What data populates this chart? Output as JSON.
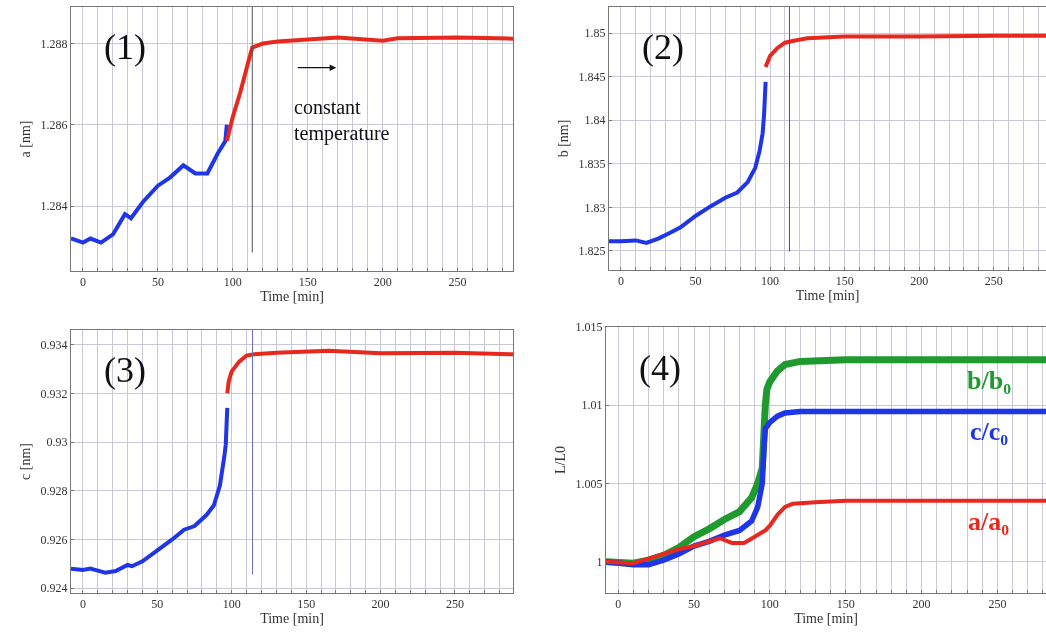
{
  "chart_data": [
    {
      "type": "line",
      "xlabel": "Time [min]",
      "ylabel": "a [nm]",
      "annotations": [
        "(1)",
        "constant temperature"
      ],
      "grid": true,
      "xlim": [
        -8,
        287
      ],
      "ylim": [
        1.2824,
        1.2889
      ],
      "yticks": [
        1.284,
        1.286,
        1.288
      ],
      "xticks": [
        0,
        {
          "value": 10,
          "label": null
        },
        {
          "value": 20,
          "label": null
        },
        {
          "value": 30,
          "label": null
        },
        {
          "value": 40,
          "label": null
        },
        50,
        {
          "value": 60,
          "label": null
        },
        {
          "value": 70,
          "label": null
        },
        {
          "value": 80,
          "label": null
        },
        {
          "value": 90,
          "label": null
        },
        100,
        {
          "value": 110,
          "label": null
        },
        {
          "value": 120,
          "label": null
        },
        {
          "value": 130,
          "label": null
        },
        {
          "value": 140,
          "label": null
        },
        150,
        {
          "value": 160,
          "label": null
        },
        {
          "value": 170,
          "label": null
        },
        {
          "value": 180,
          "label": null
        },
        {
          "value": 190,
          "label": null
        },
        200,
        {
          "value": 210,
          "label": null
        },
        {
          "value": 220,
          "label": null
        },
        {
          "value": 230,
          "label": null
        },
        {
          "value": 240,
          "label": null
        },
        250,
        {
          "value": 260,
          "label": null
        },
        {
          "value": 270,
          "label": null
        },
        {
          "value": 280,
          "label": null
        }
      ],
      "ref_lines": [
        {
          "axis": "x",
          "value": 113,
          "color": "#555555"
        }
      ],
      "series": [
        {
          "color": "#1f35e8",
          "x": [
            -8,
            0,
            5,
            12,
            20,
            28,
            32,
            40,
            50,
            58,
            67,
            75,
            83,
            90,
            95,
            96
          ],
          "values": [
            1.2832,
            1.2831,
            1.2832,
            1.2831,
            1.2833,
            1.2838,
            1.2837,
            1.2841,
            1.2845,
            1.2847,
            1.285,
            1.2848,
            1.2848,
            1.2853,
            1.2856,
            1.286
          ]
        },
        {
          "color": "#e8281e",
          "x": [
            96,
            100,
            105,
            110,
            113,
            120,
            130,
            150,
            170,
            200,
            210,
            250,
            287
          ],
          "values": [
            1.2856,
            1.2862,
            1.2868,
            1.2875,
            1.2879,
            1.288,
            1.28805,
            1.2881,
            1.28815,
            1.28807,
            1.28813,
            1.28815,
            1.28812
          ]
        }
      ]
    },
    {
      "type": "line",
      "xlabel": "Time [min]",
      "ylabel": "b [nm]",
      "annotations": [
        "(2)"
      ],
      "grid": true,
      "xlim": [
        -8,
        285
      ],
      "ylim": [
        1.8228,
        1.853
      ],
      "yticks": [
        1.825,
        1.83,
        1.835,
        1.84,
        1.845,
        1.85
      ],
      "xticks": [
        0,
        {
          "value": 10,
          "label": null
        },
        {
          "value": 20,
          "label": null
        },
        {
          "value": 30,
          "label": null
        },
        {
          "value": 40,
          "label": null
        },
        50,
        {
          "value": 60,
          "label": null
        },
        {
          "value": 70,
          "label": null
        },
        {
          "value": 80,
          "label": null
        },
        {
          "value": 90,
          "label": null
        },
        100,
        {
          "value": 110,
          "label": null
        },
        {
          "value": 120,
          "label": null
        },
        {
          "value": 130,
          "label": null
        },
        {
          "value": 140,
          "label": null
        },
        150,
        {
          "value": 160,
          "label": null
        },
        {
          "value": 170,
          "label": null
        },
        {
          "value": 180,
          "label": null
        },
        {
          "value": 190,
          "label": null
        },
        200,
        {
          "value": 210,
          "label": null
        },
        {
          "value": 220,
          "label": null
        },
        {
          "value": 230,
          "label": null
        },
        {
          "value": 240,
          "label": null
        },
        250,
        {
          "value": 260,
          "label": null
        },
        {
          "value": 270,
          "label": null
        },
        {
          "value": 280,
          "label": null
        }
      ],
      "ref_lines": [
        {
          "axis": "x",
          "value": 113,
          "color": "#555555"
        }
      ],
      "series": [
        {
          "color": "#1f35e8",
          "x": [
            -8,
            0,
            10,
            17,
            25,
            32,
            40,
            50,
            60,
            70,
            78,
            85,
            90,
            93,
            95,
            96,
            97
          ],
          "values": [
            1.8261,
            1.8261,
            1.8262,
            1.8259,
            1.8264,
            1.827,
            1.8277,
            1.829,
            1.8301,
            1.8311,
            1.8317,
            1.8329,
            1.8345,
            1.8365,
            1.8385,
            1.8407,
            1.8444
          ]
        },
        {
          "color": "#e8281e",
          "x": [
            97,
            100,
            105,
            110,
            115,
            125,
            150,
            200,
            250,
            285
          ],
          "values": [
            1.8461,
            1.8474,
            1.8483,
            1.8489,
            1.8491,
            1.8494,
            1.8496,
            1.8496,
            1.8497,
            1.8497
          ]
        }
      ]
    },
    {
      "type": "line",
      "xlabel": "Time [min]",
      "ylabel": "c [nm]",
      "annotations": [
        "(3)"
      ],
      "grid": true,
      "xlim": [
        -8,
        289
      ],
      "ylim": [
        0.9238,
        0.9346
      ],
      "yticks": [
        0.924,
        0.926,
        0.928,
        0.93,
        0.932,
        0.934
      ],
      "xticks": [
        0,
        {
          "value": 10,
          "label": null
        },
        {
          "value": 20,
          "label": null
        },
        {
          "value": 30,
          "label": null
        },
        {
          "value": 40,
          "label": null
        },
        50,
        {
          "value": 60,
          "label": null
        },
        {
          "value": 70,
          "label": null
        },
        {
          "value": 80,
          "label": null
        },
        {
          "value": 90,
          "label": null
        },
        100,
        {
          "value": 110,
          "label": null
        },
        {
          "value": 120,
          "label": null
        },
        {
          "value": 130,
          "label": null
        },
        {
          "value": 140,
          "label": null
        },
        150,
        {
          "value": 160,
          "label": null
        },
        {
          "value": 170,
          "label": null
        },
        {
          "value": 180,
          "label": null
        },
        {
          "value": 190,
          "label": null
        },
        200,
        {
          "value": 210,
          "label": null
        },
        {
          "value": 220,
          "label": null
        },
        {
          "value": 230,
          "label": null
        },
        {
          "value": 240,
          "label": null
        },
        250,
        {
          "value": 260,
          "label": null
        },
        {
          "value": 270,
          "label": null
        },
        {
          "value": 280,
          "label": null
        }
      ],
      "ref_lines": [
        {
          "axis": "x",
          "value": 114,
          "color": "#6a6ab0"
        }
      ],
      "series": [
        {
          "color": "#1f35e8",
          "x": [
            -8,
            0,
            5,
            10,
            15,
            22,
            30,
            33,
            40,
            50,
            60,
            68,
            75,
            83,
            88,
            92,
            94,
            95,
            96,
            97
          ],
          "values": [
            0.9248,
            0.92475,
            0.9248,
            0.92472,
            0.92463,
            0.9247,
            0.92495,
            0.9249,
            0.9251,
            0.92555,
            0.926,
            0.9264,
            0.92655,
            0.927,
            0.9274,
            0.9282,
            0.929,
            0.9294,
            0.9299,
            0.9314
          ]
        },
        {
          "color": "#e8281e",
          "x": [
            97,
            98,
            100,
            105,
            110,
            115,
            130,
            165,
            200,
            250,
            289
          ],
          "values": [
            0.932,
            0.9325,
            0.9329,
            0.9333,
            0.93355,
            0.9336,
            0.93367,
            0.93375,
            0.93365,
            0.93367,
            0.9336
          ]
        }
      ]
    },
    {
      "type": "line",
      "xlabel": "Time [min]",
      "ylabel": "L/L0",
      "annotations": [
        "(4)"
      ],
      "grid": true,
      "xlim": [
        -8,
        282
      ],
      "ylim": [
        0.998,
        1.015
      ],
      "yticks": [
        1,
        1.005,
        1.01,
        1.015
      ],
      "xticks": [
        0,
        {
          "value": 10,
          "label": null
        },
        {
          "value": 20,
          "label": null
        },
        {
          "value": 30,
          "label": null
        },
        {
          "value": 40,
          "label": null
        },
        50,
        {
          "value": 60,
          "label": null
        },
        {
          "value": 70,
          "label": null
        },
        {
          "value": 80,
          "label": null
        },
        {
          "value": 90,
          "label": null
        },
        100,
        {
          "value": 110,
          "label": null
        },
        {
          "value": 120,
          "label": null
        },
        {
          "value": 130,
          "label": null
        },
        {
          "value": 140,
          "label": null
        },
        150,
        {
          "value": 160,
          "label": null
        },
        {
          "value": 170,
          "label": null
        },
        {
          "value": 180,
          "label": null
        },
        {
          "value": 190,
          "label": null
        },
        200,
        {
          "value": 210,
          "label": null
        },
        {
          "value": 220,
          "label": null
        },
        {
          "value": 230,
          "label": null
        },
        {
          "value": 240,
          "label": null
        },
        250,
        {
          "value": 260,
          "label": null
        },
        {
          "value": 270,
          "label": null
        },
        {
          "value": 280,
          "label": null
        }
      ],
      "series": [
        {
          "name": "b/b₀",
          "color": "#1f9a2e",
          "x": [
            -8,
            10,
            20,
            30,
            40,
            50,
            60,
            70,
            80,
            88,
            92,
            95,
            96,
            97,
            98,
            100,
            105,
            110,
            120,
            150,
            282
          ],
          "values": [
            1,
            0.9999,
            1.0001,
            1.0004,
            1.0009,
            1.0016,
            1.0021,
            1.0027,
            1.0032,
            1.0041,
            1.005,
            1.006,
            1.008,
            1.01,
            1.011,
            1.0115,
            1.0122,
            1.0126,
            1.0128,
            1.0129,
            1.0129
          ]
        },
        {
          "name": "c/c₀",
          "color": "#1f35e8",
          "x": [
            -8,
            10,
            20,
            30,
            40,
            50,
            60,
            70,
            80,
            88,
            92,
            95,
            96,
            97,
            100,
            105,
            110,
            120,
            150,
            282
          ],
          "values": [
            1,
            0.9998,
            0.9998,
            1.0001,
            1.0005,
            1.001,
            1.0013,
            1.0017,
            1.002,
            1.0026,
            1.0035,
            1.005,
            1.007,
            1.0085,
            1.0089,
            1.0093,
            1.0095,
            1.0096,
            1.0096,
            1.0096
          ]
        },
        {
          "name": "a/a₀",
          "color": "#e8281e",
          "x": [
            -8,
            10,
            20,
            30,
            40,
            50,
            60,
            67,
            75,
            83,
            90,
            97,
            100,
            105,
            110,
            115,
            130,
            150,
            282
          ],
          "values": [
            1,
            0.9999,
            1.0002,
            1.0005,
            1.0008,
            1.001,
            1.0013,
            1.0015,
            1.0012,
            1.0012,
            1.0016,
            1.002,
            1.0023,
            1.003,
            1.0035,
            1.0037,
            1.0038,
            1.0039,
            1.0039
          ]
        }
      ]
    }
  ]
}
